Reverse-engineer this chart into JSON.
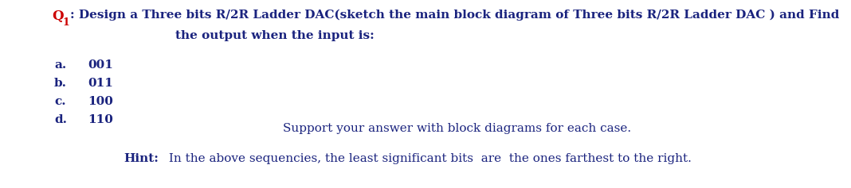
{
  "bg_color": "#ffffff",
  "q_label": "Q",
  "q_subscript": "1",
  "q_color": "#cc0000",
  "main_color": "#1a237e",
  "line1_after_q": ": Design a Three bits R/2R Ladder DAC(sketch the main block diagram of Three bits R/2R Ladder DAC ) and Find",
  "line2": "the output when the input is:",
  "items": [
    {
      "label": "a.",
      "value": "001"
    },
    {
      "label": "b.",
      "value": "011"
    },
    {
      "label": "c.",
      "value": "100"
    },
    {
      "label": "d.",
      "value": "110"
    }
  ],
  "support_line": "Support your answer with block diagrams for each case.",
  "hint_bold": "Hint:",
  "hint_rest": " In the above sequencies, the least significant bits  are  the ones farthest to the right.",
  "font_family": "DejaVu Serif",
  "font_size_main": 11.0,
  "font_size_items": 11.0,
  "font_size_support": 11.0,
  "font_size_hint": 11.0,
  "figw": 10.68,
  "figh": 2.37,
  "dpi": 100
}
